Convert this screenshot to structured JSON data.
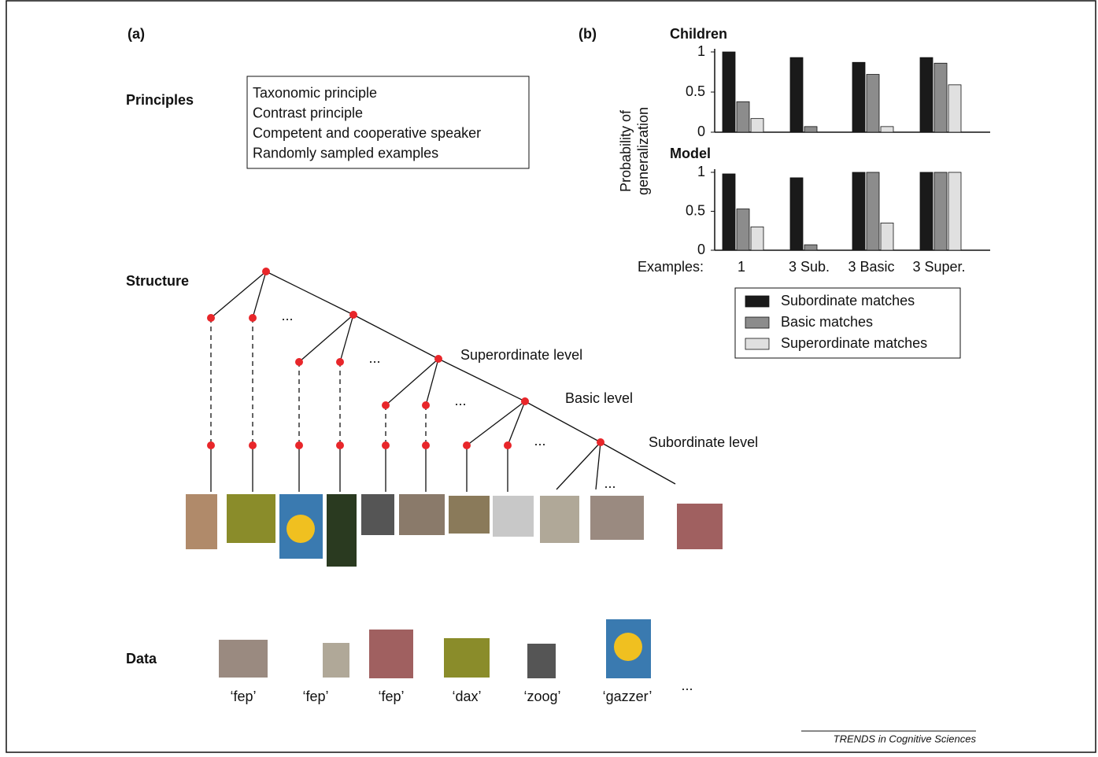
{
  "panel_a": {
    "label": "(a)",
    "principles_heading": "Principles",
    "principles": [
      "Taxonomic principle",
      "Contrast principle",
      "Competent and cooperative speaker",
      "Randomly sampled examples"
    ],
    "structure_heading": "Structure",
    "data_heading": "Data",
    "levels": [
      "Superordinate level",
      "Basic level",
      "Subordinate level"
    ],
    "ellipsis": "...",
    "data_words": [
      "‘fep’",
      "‘fep’",
      "‘fep’",
      "‘dax’",
      "‘zoog’",
      "‘gazzer’"
    ]
  },
  "panel_b": {
    "label": "(b)",
    "ylabel_lines": [
      "Probability of",
      "generalization"
    ],
    "x_prefix": "Examples:"
  },
  "chart_data": [
    {
      "type": "bar",
      "title": "Children",
      "ylim": [
        0,
        1
      ],
      "yticks": [
        0,
        0.5,
        1
      ],
      "series": [
        {
          "name": "Subordinate matches",
          "color": "#1a1a1a",
          "values": [
            1.0,
            0.93,
            0.87,
            0.93
          ]
        },
        {
          "name": "Basic matches",
          "color": "#8c8c8c",
          "values": [
            0.38,
            0.07,
            0.72,
            0.86
          ]
        },
        {
          "name": "Superordinate matches",
          "color": "#e0e0e0",
          "values": [
            0.17,
            0,
            0.07,
            0.59
          ]
        }
      ]
    },
    {
      "type": "bar",
      "title": "Model",
      "ylim": [
        0,
        1
      ],
      "yticks": [
        0,
        0.5,
        1
      ],
      "categories": [
        "1",
        "3 Sub.",
        "3 Basic",
        "3 Super."
      ],
      "series": [
        {
          "color": "#1a1a1a",
          "values": [
            0.98,
            0.93,
            1.0,
            1.0
          ]
        },
        {
          "color": "#8c8c8c",
          "values": [
            0.53,
            0.07,
            1.0,
            1.0
          ]
        },
        {
          "color": "#e0e0e0",
          "values": [
            0.3,
            0,
            0.35,
            1.0
          ]
        }
      ]
    }
  ],
  "footer": "TRENDS in Cognitive Sciences"
}
